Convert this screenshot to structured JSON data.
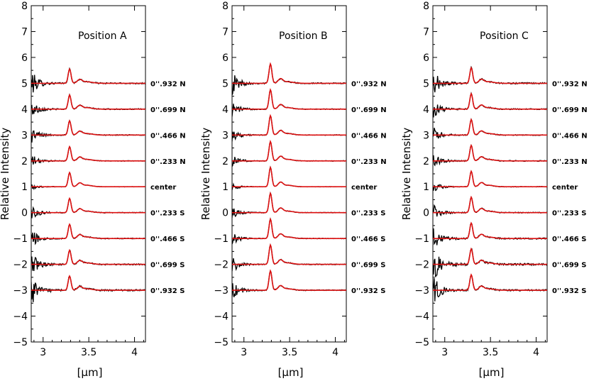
{
  "chart_data": [
    {
      "type": "line",
      "title": "Position A",
      "xlabel": "[μm]",
      "ylabel": "Relative Intensity",
      "xlim": [
        2.87,
        4.12
      ],
      "ylim": [
        -5,
        8
      ],
      "xticks": [
        3,
        3.5,
        4
      ],
      "yticks": [
        -5,
        -4,
        -3,
        -2,
        -1,
        0,
        1,
        2,
        3,
        4,
        5,
        6,
        7,
        8
      ],
      "grid": false,
      "series": [
        {
          "name": "0''.932 N",
          "offset": 5,
          "noise": 0.42
        },
        {
          "name": "0''.699 N",
          "offset": 4,
          "noise": 0.32
        },
        {
          "name": "0''.466 N",
          "offset": 3,
          "noise": 0.28
        },
        {
          "name": "0''.233 N",
          "offset": 2,
          "noise": 0.22
        },
        {
          "name": "center",
          "offset": 1,
          "noise": 0.12
        },
        {
          "name": "0''.233 S",
          "offset": 0,
          "noise": 0.25
        },
        {
          "name": "0''.466 S",
          "offset": -1,
          "noise": 0.3
        },
        {
          "name": "0''.699 S",
          "offset": -2,
          "noise": 0.4
        },
        {
          "name": "0''.932 S",
          "offset": -3,
          "noise": 0.5
        }
      ],
      "feature": {
        "peak_um": 3.29,
        "peak_height": 0.55,
        "secondary_um": 3.4,
        "secondary_height": 0.12
      }
    },
    {
      "type": "line",
      "title": "Position B",
      "xlabel": "[μm]",
      "ylabel": "Relative Intensity",
      "xlim": [
        2.87,
        4.12
      ],
      "ylim": [
        -5,
        8
      ],
      "xticks": [
        3,
        3.5,
        4
      ],
      "yticks": [
        -5,
        -4,
        -3,
        -2,
        -1,
        0,
        1,
        2,
        3,
        4,
        5,
        6,
        7,
        8
      ],
      "grid": false,
      "series": [
        {
          "name": "0''.932 N",
          "offset": 5,
          "noise": 0.38
        },
        {
          "name": "0''.699 N",
          "offset": 4,
          "noise": 0.25
        },
        {
          "name": "0''.466 N",
          "offset": 3,
          "noise": 0.22
        },
        {
          "name": "0''.233 N",
          "offset": 2,
          "noise": 0.2
        },
        {
          "name": "center",
          "offset": 1,
          "noise": 0.12
        },
        {
          "name": "0''.233 S",
          "offset": 0,
          "noise": 0.2
        },
        {
          "name": "0''.466 S",
          "offset": -1,
          "noise": 0.22
        },
        {
          "name": "0''.699 S",
          "offset": -2,
          "noise": 0.28
        },
        {
          "name": "0''.932 S",
          "offset": -3,
          "noise": 0.3
        }
      ],
      "feature": {
        "peak_um": 3.29,
        "peak_height": 0.75,
        "secondary_um": 3.4,
        "secondary_height": 0.15
      }
    },
    {
      "type": "line",
      "title": "Position C",
      "xlabel": "[μm]",
      "ylabel": "Relative Intensity",
      "xlim": [
        2.87,
        4.12
      ],
      "ylim": [
        -5,
        8
      ],
      "xticks": [
        3,
        3.5,
        4
      ],
      "yticks": [
        -5,
        -4,
        -3,
        -2,
        -1,
        0,
        1,
        2,
        3,
        4,
        5,
        6,
        7,
        8
      ],
      "grid": false,
      "series": [
        {
          "name": "0''.932 N",
          "offset": 5,
          "noise": 0.45
        },
        {
          "name": "0''.699 N",
          "offset": 4,
          "noise": 0.35
        },
        {
          "name": "0''.466 N",
          "offset": 3,
          "noise": 0.3
        },
        {
          "name": "0''.233 N",
          "offset": 2,
          "noise": 0.3
        },
        {
          "name": "center",
          "offset": 1,
          "noise": 0.2
        },
        {
          "name": "0''.233 S",
          "offset": 0,
          "noise": 0.3
        },
        {
          "name": "0''.466 S",
          "offset": -1,
          "noise": 0.45
        },
        {
          "name": "0''.699 S",
          "offset": -2,
          "noise": 0.65
        },
        {
          "name": "0''.932 S",
          "offset": -3,
          "noise": 0.5
        }
      ],
      "feature": {
        "peak_um": 3.29,
        "peak_height": 0.6,
        "secondary_um": 3.4,
        "secondary_height": 0.13
      }
    }
  ],
  "colors": {
    "observed": "#000000",
    "fit": "#dd1111",
    "axes": "#000000",
    "background": "#ffffff"
  }
}
